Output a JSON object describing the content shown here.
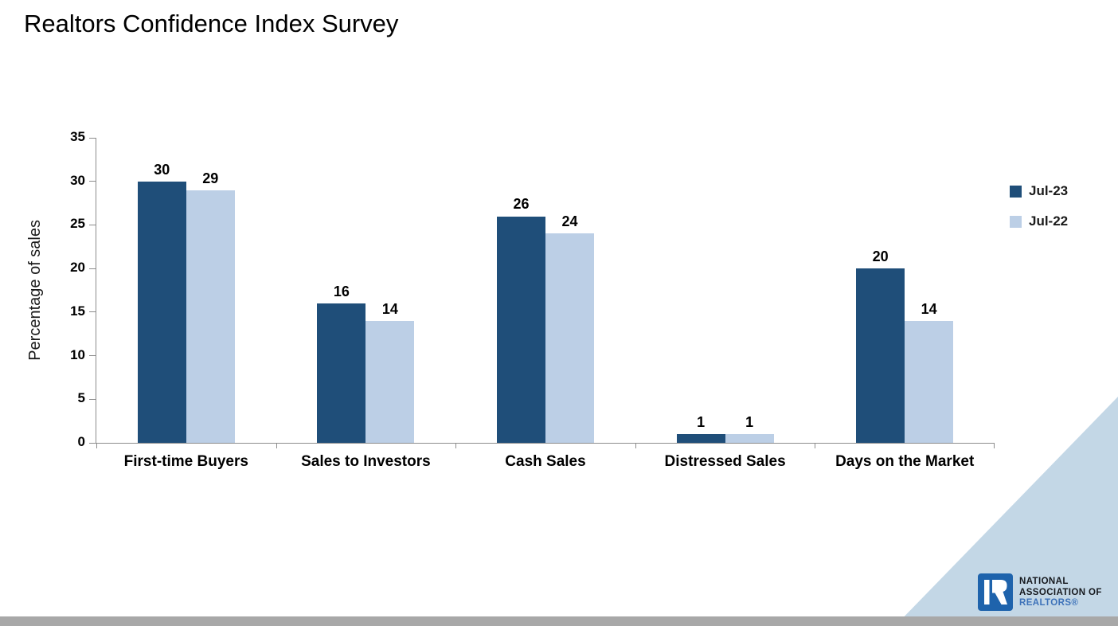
{
  "title": "Realtors Confidence Index Survey",
  "chart_data": {
    "type": "bar",
    "title": "Realtors Confidence Index Survey",
    "categories": [
      "First-time Buyers",
      "Sales to Investors",
      "Cash Sales",
      "Distressed Sales",
      "Days on the Market"
    ],
    "series": [
      {
        "name": "Jul-23",
        "color": "#1F4E79",
        "values": [
          30,
          16,
          26,
          1,
          20
        ]
      },
      {
        "name": "Jul-22",
        "color": "#BCCFE6",
        "values": [
          29,
          14,
          24,
          1,
          14
        ]
      }
    ],
    "xlabel": "",
    "ylabel": "Percentage of sales",
    "ylim": [
      0,
      35
    ],
    "yticks": [
      0,
      5,
      10,
      15,
      20,
      25,
      30,
      35
    ],
    "grid": false,
    "legend_position": "right",
    "bar_value_labels": true
  },
  "branding": {
    "org_line1": "NATIONAL",
    "org_line2": "ASSOCIATION OF",
    "org_line3": "REALTORS®"
  },
  "colors": {
    "series_dark": "#1F4E79",
    "series_light": "#BCCFE6",
    "axis_line": "#8C8C8C",
    "text": "#000000",
    "triangle": "#C3D7E6",
    "bottom_bar": "#A8A8A8",
    "logo_blue": "#1E63AC",
    "realtors_text_blue": "#3D72B9"
  }
}
